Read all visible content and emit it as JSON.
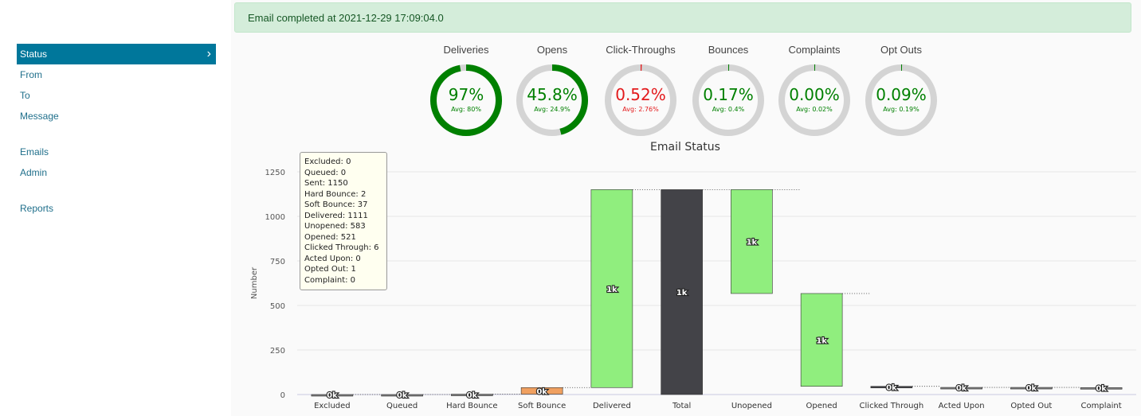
{
  "sidebar": {
    "items": [
      {
        "label": "Status",
        "active": true
      },
      {
        "label": "From"
      },
      {
        "label": "To"
      },
      {
        "label": "Message"
      },
      {
        "label": "Emails"
      },
      {
        "label": "Admin"
      },
      {
        "label": "Reports"
      }
    ]
  },
  "alert": {
    "text": "Email completed at 2021-12-29 17:09:04.0"
  },
  "gauges": [
    {
      "label": "Deliveries",
      "value": "97%",
      "avg": "Avg: 80%",
      "fraction": 0.97,
      "color": "#008000"
    },
    {
      "label": "Opens",
      "value": "45.8%",
      "avg": "Avg: 24.9%",
      "fraction": 0.458,
      "color": "#008000"
    },
    {
      "label": "Click-Throughs",
      "value": "0.52%",
      "avg": "Avg: 2.76%",
      "fraction": 0.0052,
      "color": "#e31a1c"
    },
    {
      "label": "Bounces",
      "value": "0.17%",
      "avg": "Avg: 0.4%",
      "fraction": 0.0017,
      "color": "#008000"
    },
    {
      "label": "Complaints",
      "value": "0.00%",
      "avg": "Avg: 0.02%",
      "fraction": 0.0,
      "color": "#008000"
    },
    {
      "label": "Opt Outs",
      "value": "0.09%",
      "avg": "Avg: 0.19%",
      "fraction": 0.0009,
      "color": "#008000"
    }
  ],
  "tooltip": [
    "Excluded: 0",
    "Queued: 0",
    "Sent: 1150",
    "Hard Bounce: 2",
    "Soft Bounce: 37",
    "Delivered: 1111",
    "Unopened: 583",
    "Opened: 521",
    "Clicked Through: 6",
    "Acted Upon: 0",
    "Opted Out: 1",
    "Complaint: 0"
  ],
  "chart_data": {
    "type": "bar",
    "title": "Email Status",
    "ylabel": "Number",
    "ylim": [
      0,
      1250
    ],
    "yticks": [
      0,
      250,
      500,
      750,
      1000,
      1250
    ],
    "categories": [
      "Excluded",
      "Queued",
      "Hard Bounce",
      "Soft Bounce",
      "Delivered",
      "Total",
      "Unopened",
      "Opened",
      "Clicked Through",
      "Acted Upon",
      "Opted Out",
      "Complaint"
    ],
    "bars": [
      {
        "low": 0,
        "high": 0,
        "label": "0k",
        "color": "#808080"
      },
      {
        "low": 0,
        "high": 0,
        "label": "0k",
        "color": "#808080"
      },
      {
        "low": 0,
        "high": 2,
        "label": "0k",
        "color": "#808080"
      },
      {
        "low": 2,
        "high": 39,
        "label": "0k",
        "color": "#f0a060"
      },
      {
        "low": 39,
        "high": 1150,
        "label": "1k",
        "color": "#90ee7e"
      },
      {
        "low": 0,
        "high": 1150,
        "label": "1k",
        "color": "#434348"
      },
      {
        "low": 567,
        "high": 1150,
        "label": "1k",
        "color": "#90ee7e"
      },
      {
        "low": 46,
        "high": 567,
        "label": "1k",
        "color": "#90ee7e"
      },
      {
        "low": 40,
        "high": 46,
        "label": "0k",
        "color": "#434348"
      },
      {
        "low": 40,
        "high": 40,
        "label": "0k",
        "color": "#808080"
      },
      {
        "low": 39,
        "high": 40,
        "label": "0k",
        "color": "#808080"
      },
      {
        "low": 39,
        "high": 39,
        "label": "0k",
        "color": "#808080"
      }
    ]
  }
}
